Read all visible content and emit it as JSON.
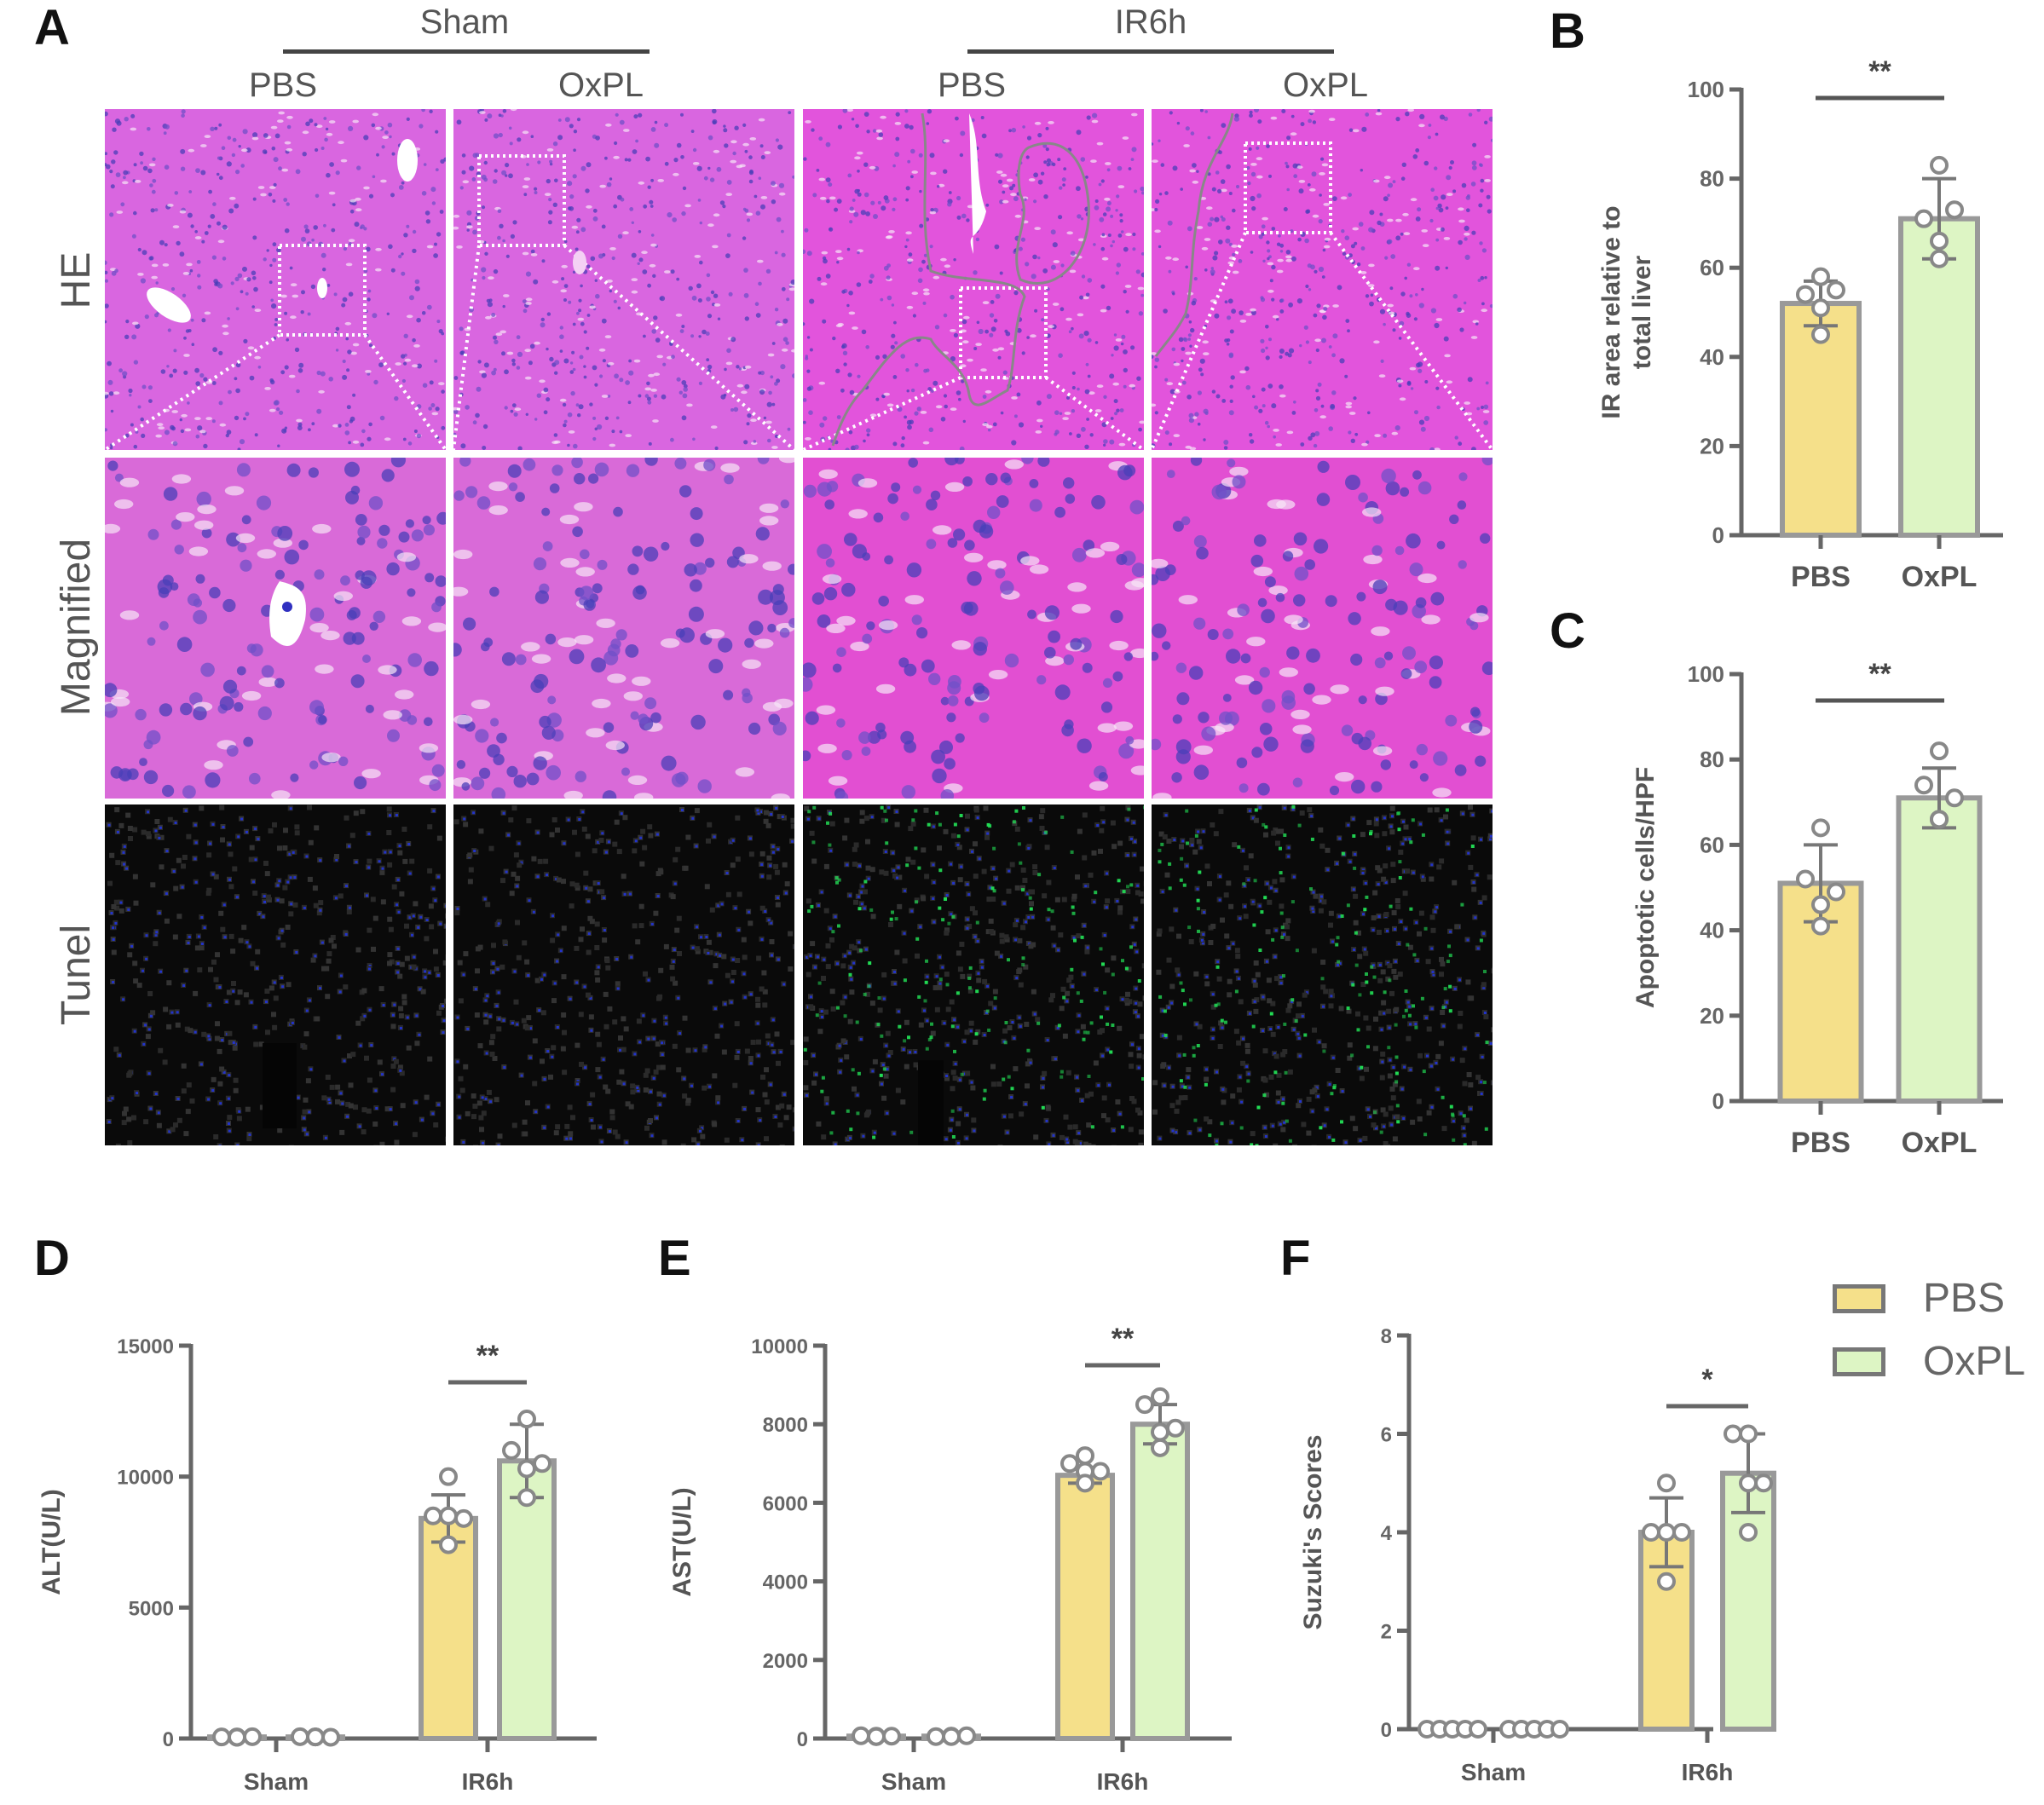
{
  "figure": {
    "panel_letters": {
      "a": "A",
      "b": "B",
      "c": "C",
      "d": "D",
      "e": "E",
      "f": "F"
    },
    "panel_a": {
      "groups": [
        {
          "label": "Sham",
          "columns": [
            "PBS",
            "OxPL"
          ]
        },
        {
          "label": "IR6h",
          "columns": [
            "PBS",
            "OxPL"
          ]
        }
      ],
      "rows": [
        "HE",
        "Magnified",
        "Tunel"
      ],
      "tiles": [
        {
          "row": "HE",
          "group": "Sham",
          "column": "PBS",
          "stain": "he"
        },
        {
          "row": "HE",
          "group": "Sham",
          "column": "OxPL",
          "stain": "he"
        },
        {
          "row": "HE",
          "group": "IR6h",
          "column": "PBS",
          "stain": "he"
        },
        {
          "row": "HE",
          "group": "IR6h",
          "column": "OxPL",
          "stain": "he"
        },
        {
          "row": "Magnified",
          "group": "Sham",
          "column": "PBS",
          "stain": "he-mag"
        },
        {
          "row": "Magnified",
          "group": "Sham",
          "column": "OxPL",
          "stain": "he-mag"
        },
        {
          "row": "Magnified",
          "group": "IR6h",
          "column": "PBS",
          "stain": "he-mag"
        },
        {
          "row": "Magnified",
          "group": "IR6h",
          "column": "OxPL",
          "stain": "he-mag"
        },
        {
          "row": "Tunel",
          "group": "Sham",
          "column": "PBS",
          "stain": "tunel-negative"
        },
        {
          "row": "Tunel",
          "group": "Sham",
          "column": "OxPL",
          "stain": "tunel-negative"
        },
        {
          "row": "Tunel",
          "group": "IR6h",
          "column": "PBS",
          "stain": "tunel-positive"
        },
        {
          "row": "Tunel",
          "group": "IR6h",
          "column": "OxPL",
          "stain": "tunel-positive"
        }
      ],
      "colors": {
        "he_bg": "#e060e0",
        "tunel_bg": "#0a0a0a",
        "dapi": "#2233cc",
        "tunel_pos": "#22dd55"
      }
    },
    "legend": [
      {
        "label": "PBS",
        "color": "#f5e08a"
      },
      {
        "label": "OxPL",
        "color": "#ddf5c4"
      }
    ]
  },
  "chart_data": [
    {
      "id": "B",
      "type": "bar",
      "title": "",
      "xlabel": "",
      "ylabel": "IR area relative to total liver",
      "ylabel_lines": [
        "IR area relative to",
        "total liver"
      ],
      "categories": [
        "PBS",
        "OxPL"
      ],
      "values": [
        52,
        71
      ],
      "sd": [
        5,
        9
      ],
      "points": [
        [
          58,
          54,
          55,
          51,
          45
        ],
        [
          83,
          71,
          73,
          66,
          62
        ]
      ],
      "colors": [
        "#f5e08a",
        "#ddf5c4"
      ],
      "ylim": [
        0,
        100
      ],
      "yticks": [
        0,
        20,
        40,
        60,
        80,
        100
      ],
      "significance": [
        {
          "from": 0,
          "to": 1,
          "label": "**"
        }
      ],
      "grid": false
    },
    {
      "id": "C",
      "type": "bar",
      "title": "",
      "xlabel": "",
      "ylabel": "Apoptotic cells/HPF",
      "ylabel_lines": [
        "Apoptotic cells/HPF"
      ],
      "categories": [
        "PBS",
        "OxPL"
      ],
      "values": [
        51,
        71
      ],
      "sd": [
        9,
        7
      ],
      "points": [
        [
          64,
          52,
          49,
          46,
          41
        ],
        [
          82,
          74,
          71,
          66,
          66
        ]
      ],
      "colors": [
        "#f5e08a",
        "#ddf5c4"
      ],
      "ylim": [
        0,
        100
      ],
      "yticks": [
        0,
        20,
        40,
        60,
        80,
        100
      ],
      "significance": [
        {
          "from": 0,
          "to": 1,
          "label": "**"
        }
      ],
      "grid": false
    },
    {
      "id": "D",
      "type": "bar",
      "title": "",
      "xlabel": "",
      "ylabel": "ALT(U/L)",
      "ylabel_lines": [
        "ALT(U/L)"
      ],
      "categories": [
        "Sham",
        "IR6h"
      ],
      "series": [
        {
          "name": "PBS",
          "values": [
            60,
            8400
          ],
          "sd": [
            20,
            900
          ],
          "points": [
            [
              50,
              60,
              70,
              60,
              50
            ],
            [
              10000,
              8500,
              8400,
              8500,
              7400
            ]
          ]
        },
        {
          "name": "OxPL",
          "values": [
            60,
            10600
          ],
          "sd": [
            20,
            1400
          ],
          "points": [
            [
              60,
              70,
              50,
              60,
              60
            ],
            [
              12200,
              11000,
              10500,
              10300,
              9200
            ]
          ]
        }
      ],
      "colors": [
        "#f5e08a",
        "#ddf5c4"
      ],
      "ylim": [
        0,
        15000
      ],
      "yticks": [
        0,
        5000,
        10000,
        15000
      ],
      "ytick_labels": [
        "0",
        "5000",
        "10000",
        "15000"
      ],
      "significance": [
        {
          "category": 1,
          "label": "**"
        }
      ],
      "grid": false
    },
    {
      "id": "E",
      "type": "bar",
      "title": "",
      "xlabel": "",
      "ylabel": "AST(U/L)",
      "ylabel_lines": [
        "AST(U/L)"
      ],
      "categories": [
        "Sham",
        "IR6h"
      ],
      "series": [
        {
          "name": "PBS",
          "values": [
            60,
            6700
          ],
          "sd": [
            20,
            200
          ],
          "points": [
            [
              50,
              70,
              60,
              60,
              50
            ],
            [
              7200,
              7000,
              6800,
              6800,
              6500
            ]
          ]
        },
        {
          "name": "OxPL",
          "values": [
            60,
            8000
          ],
          "sd": [
            20,
            500
          ],
          "points": [
            [
              60,
              50,
              70,
              60,
              50
            ],
            [
              8700,
              8500,
              7900,
              7800,
              7400
            ]
          ]
        }
      ],
      "colors": [
        "#f5e08a",
        "#ddf5c4"
      ],
      "ylim": [
        0,
        10000
      ],
      "yticks": [
        0,
        2000,
        4000,
        6000,
        8000,
        10000
      ],
      "ytick_labels": [
        "0",
        "2000",
        "4000",
        "6000",
        "8000",
        "10000"
      ],
      "significance": [
        {
          "category": 1,
          "label": "**"
        }
      ],
      "grid": false
    },
    {
      "id": "F",
      "type": "bar",
      "title": "",
      "xlabel": "",
      "ylabel": "Suzuki's Scores",
      "ylabel_lines": [
        "Suzuki's Scores"
      ],
      "categories": [
        "Sham",
        "IR6h"
      ],
      "series": [
        {
          "name": "PBS",
          "values": [
            0,
            4
          ],
          "sd": [
            0,
            0.7
          ],
          "points": [
            [
              0,
              0,
              0,
              0,
              0
            ],
            [
              5,
              4,
              4,
              4,
              3
            ]
          ]
        },
        {
          "name": "OxPL",
          "values": [
            0,
            5.2
          ],
          "sd": [
            0,
            0.8
          ],
          "points": [
            [
              0,
              0,
              0,
              0,
              0
            ],
            [
              6,
              6,
              5,
              5,
              4
            ]
          ]
        }
      ],
      "colors": [
        "#f5e08a",
        "#ddf5c4"
      ],
      "ylim": [
        0,
        8
      ],
      "yticks": [
        0,
        2,
        4,
        6,
        8
      ],
      "ytick_labels": [
        "0",
        "2",
        "4",
        "6",
        "8"
      ],
      "significance": [
        {
          "category": 1,
          "label": "*"
        }
      ],
      "grid": false
    }
  ]
}
